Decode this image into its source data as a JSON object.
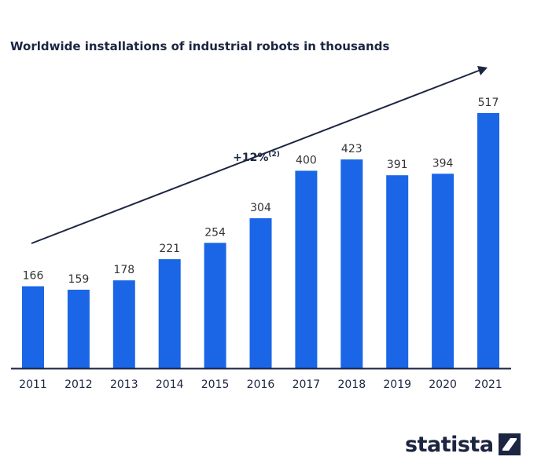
{
  "chart_data": {
    "type": "bar",
    "title": "Worldwide installations of industrial robots in thousands",
    "categories": [
      "2011",
      "2012",
      "2013",
      "2014",
      "2015",
      "2016",
      "2017",
      "2018",
      "2019",
      "2020",
      "2021"
    ],
    "values": [
      166,
      159,
      178,
      221,
      254,
      304,
      400,
      423,
      391,
      394,
      517
    ],
    "ylim": [
      0,
      517
    ],
    "xlabel": "",
    "ylabel": "",
    "grid": false,
    "legend": "none",
    "bar_color": "#1a66e6",
    "annotation": {
      "text": "+12%",
      "superscript": "(2)",
      "style": "trend-arrow"
    }
  },
  "brand": {
    "name": "statista",
    "logo_icon": "statista-logo-icon"
  },
  "colors": {
    "bar": "#1a66e6",
    "text": "#1c2541",
    "value_label": "#333333",
    "axis": "#1c2541"
  }
}
